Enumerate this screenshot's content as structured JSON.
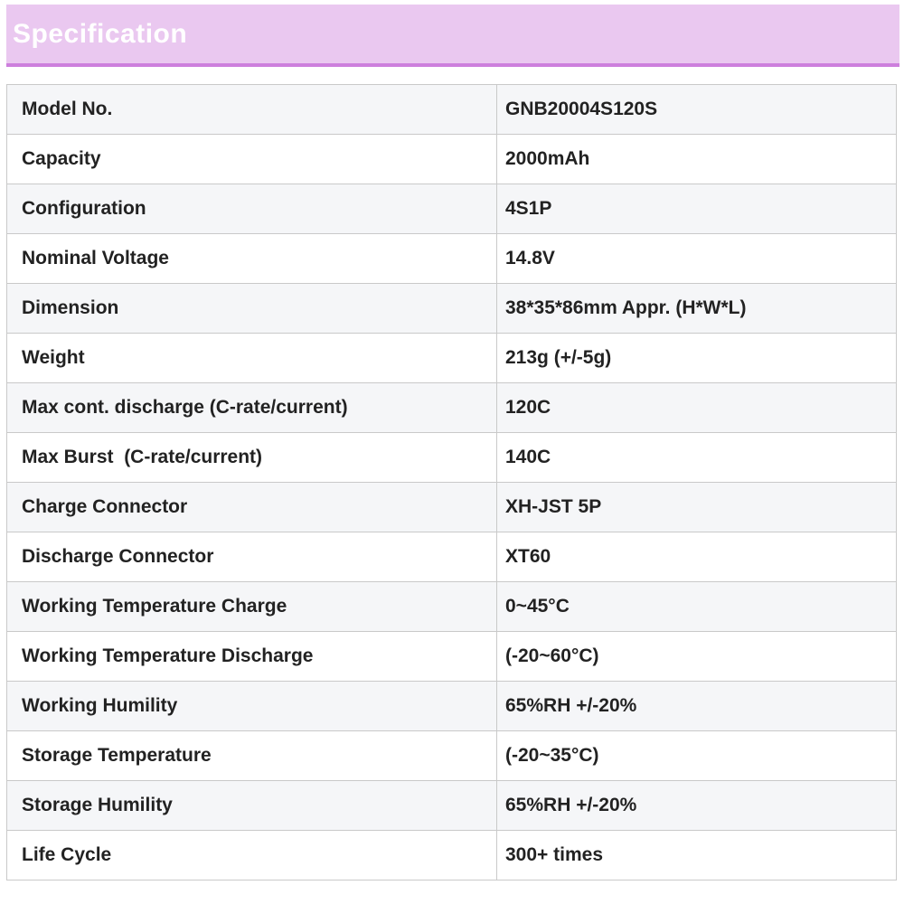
{
  "header": {
    "title": "Specification",
    "background_color": "#eac8f0",
    "accent_border_color": "#cd7fdd",
    "text_color": "#ffffff"
  },
  "table": {
    "row_alt_color": "#f5f6f8",
    "border_color": "#c9c9c9",
    "text_color": "#222222",
    "rows": [
      {
        "label": "Model No.",
        "value": "GNB20004S120S"
      },
      {
        "label": "Capacity",
        "value": "2000mAh"
      },
      {
        "label": "Configuration",
        "value": "4S1P"
      },
      {
        "label": "Nominal Voltage",
        "value": "14.8V"
      },
      {
        "label": "Dimension",
        "value": "38*35*86mm Appr. (H*W*L)"
      },
      {
        "label": "Weight",
        "value": "213g (+/-5g)"
      },
      {
        "label": "Max cont. discharge (C-rate/current)",
        "value": "120C"
      },
      {
        "label": "Max Burst  (C-rate/current)",
        "value": "140C"
      },
      {
        "label": "Charge Connector",
        "value": "XH-JST 5P"
      },
      {
        "label": "Discharge Connector",
        "value": "XT60"
      },
      {
        "label": "Working Temperature Charge",
        "value": "0~45°C"
      },
      {
        "label": "Working Temperature Discharge",
        "value": "(-20~60°C)"
      },
      {
        "label": "Working Humility",
        "value": "65%RH +/-20%"
      },
      {
        "label": "Storage Temperature",
        "value": "(-20~35°C)"
      },
      {
        "label": "Storage Humility",
        "value": "65%RH +/-20%"
      },
      {
        "label": "Life Cycle",
        "value": "300+ times"
      }
    ]
  }
}
